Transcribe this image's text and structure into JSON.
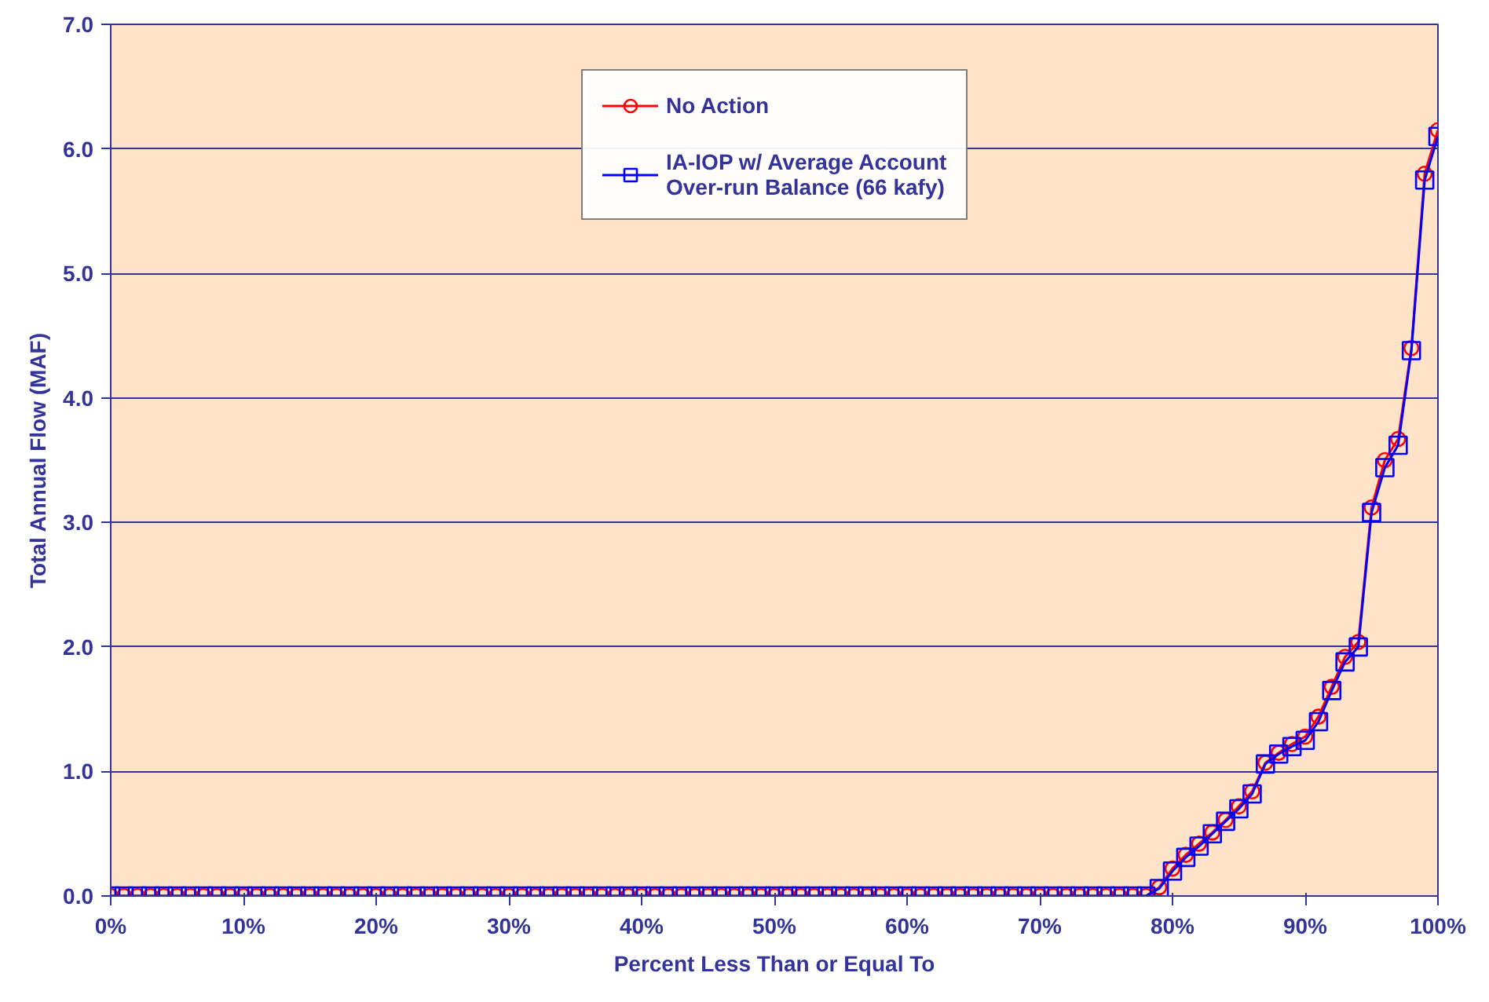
{
  "chart_data": {
    "type": "line",
    "xlabel": "Percent Less Than or Equal To",
    "ylabel": "Total Annual Flow (MAF)",
    "x": [
      0,
      1,
      2,
      3,
      4,
      5,
      6,
      7,
      8,
      9,
      10,
      11,
      12,
      13,
      14,
      15,
      16,
      17,
      18,
      19,
      20,
      21,
      22,
      23,
      24,
      25,
      26,
      27,
      28,
      29,
      30,
      31,
      32,
      33,
      34,
      35,
      36,
      37,
      38,
      39,
      40,
      41,
      42,
      43,
      44,
      45,
      46,
      47,
      48,
      49,
      50,
      51,
      52,
      53,
      54,
      55,
      56,
      57,
      58,
      59,
      60,
      61,
      62,
      63,
      64,
      65,
      66,
      67,
      68,
      69,
      70,
      71,
      72,
      73,
      74,
      75,
      76,
      77,
      78,
      79,
      80,
      81,
      82,
      83,
      84,
      85,
      86,
      87,
      88,
      89,
      90,
      91,
      92,
      93,
      94,
      95,
      96,
      97,
      98,
      99,
      100
    ],
    "series": [
      {
        "name": "No Action",
        "color": "#ff0000",
        "marker": "circle",
        "values": [
          0,
          0,
          0,
          0,
          0,
          0,
          0,
          0,
          0,
          0,
          0,
          0,
          0,
          0,
          0,
          0,
          0,
          0,
          0,
          0,
          0,
          0,
          0,
          0,
          0,
          0,
          0,
          0,
          0,
          0,
          0,
          0,
          0,
          0,
          0,
          0,
          0,
          0,
          0,
          0,
          0,
          0,
          0,
          0,
          0,
          0,
          0,
          0,
          0,
          0,
          0,
          0,
          0,
          0,
          0,
          0,
          0,
          0,
          0,
          0,
          0,
          0,
          0,
          0,
          0,
          0,
          0,
          0,
          0,
          0,
          0,
          0,
          0,
          0,
          0,
          0,
          0,
          0,
          0,
          0.07,
          0.22,
          0.33,
          0.42,
          0.51,
          0.61,
          0.72,
          0.84,
          1.07,
          1.15,
          1.22,
          1.28,
          1.44,
          1.68,
          1.92,
          2.04,
          3.12,
          3.5,
          3.67,
          4.4,
          5.8,
          6.15
        ]
      },
      {
        "name": "IA-IOP w/ Average Account Over-run Balance (66 kafy)",
        "color": "#0000ff",
        "marker": "square",
        "values": [
          0,
          0,
          0,
          0,
          0,
          0,
          0,
          0,
          0,
          0,
          0,
          0,
          0,
          0,
          0,
          0,
          0,
          0,
          0,
          0,
          0,
          0,
          0,
          0,
          0,
          0,
          0,
          0,
          0,
          0,
          0,
          0,
          0,
          0,
          0,
          0,
          0,
          0,
          0,
          0,
          0,
          0,
          0,
          0,
          0,
          0,
          0,
          0,
          0,
          0,
          0,
          0,
          0,
          0,
          0,
          0,
          0,
          0,
          0,
          0,
          0,
          0,
          0,
          0,
          0,
          0,
          0,
          0,
          0,
          0,
          0,
          0,
          0,
          0,
          0,
          0,
          0,
          0,
          0,
          0.06,
          0.2,
          0.31,
          0.4,
          0.5,
          0.6,
          0.7,
          0.82,
          1.06,
          1.14,
          1.2,
          1.25,
          1.4,
          1.65,
          1.88,
          2.0,
          3.08,
          3.44,
          3.62,
          4.38,
          5.75,
          6.1
        ]
      }
    ],
    "xlim": [
      0,
      100
    ],
    "xticks": [
      {
        "value": 0,
        "label": "0%"
      },
      {
        "value": 10,
        "label": "10%"
      },
      {
        "value": 20,
        "label": "20%"
      },
      {
        "value": 30,
        "label": "30%"
      },
      {
        "value": 40,
        "label": "40%"
      },
      {
        "value": 50,
        "label": "50%"
      },
      {
        "value": 60,
        "label": "60%"
      },
      {
        "value": 70,
        "label": "70%"
      },
      {
        "value": 80,
        "label": "80%"
      },
      {
        "value": 90,
        "label": "90%"
      },
      {
        "value": 100,
        "label": "100%"
      }
    ],
    "ylim": [
      0,
      7
    ],
    "yticks": [
      {
        "value": 0,
        "label": "0.0"
      },
      {
        "value": 1,
        "label": "1.0"
      },
      {
        "value": 2,
        "label": "2.0"
      },
      {
        "value": 3,
        "label": "3.0"
      },
      {
        "value": 4,
        "label": "4.0"
      },
      {
        "value": 5,
        "label": "5.0"
      },
      {
        "value": 6,
        "label": "6.0"
      },
      {
        "value": 7,
        "label": "7.0"
      }
    ],
    "grid": "y",
    "legend": "top",
    "line_style": "solid"
  }
}
